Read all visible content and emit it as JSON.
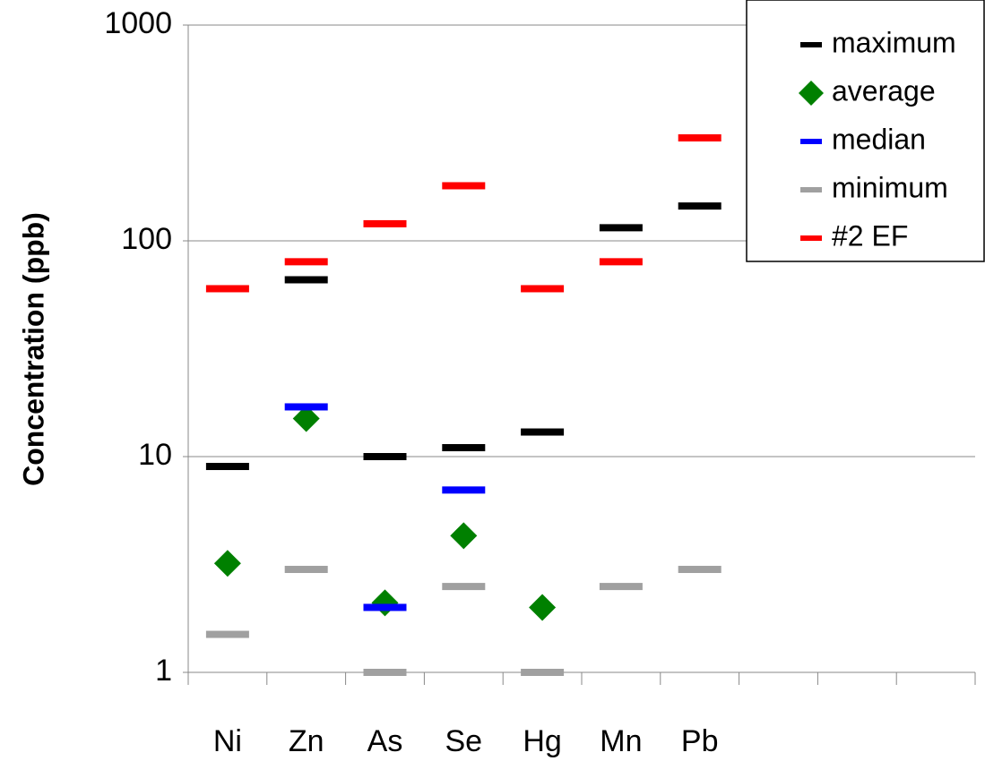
{
  "chart_data": {
    "type": "dot",
    "ylabel": "Concentration (ppb)",
    "categories": [
      "Ni",
      "Zn",
      "As",
      "Se",
      "Hg",
      "Mn",
      "Pb",
      null,
      null,
      null
    ],
    "series": [
      {
        "name": "maximum",
        "color": "#000000",
        "marker": "dash",
        "values": [
          9,
          66,
          10,
          11,
          13,
          115,
          145,
          null,
          null,
          null
        ]
      },
      {
        "name": "average",
        "color": "#008000",
        "marker": "diamond",
        "values": [
          3.2,
          15,
          2.1,
          4.3,
          2.0,
          null,
          null,
          null,
          null,
          null
        ]
      },
      {
        "name": "median",
        "color": "#0000ff",
        "marker": "dash",
        "values": [
          null,
          17,
          2.0,
          7.0,
          null,
          null,
          null,
          null,
          null,
          null
        ]
      },
      {
        "name": "minimum",
        "color": "#a0a0a0",
        "marker": "dash",
        "values": [
          1.5,
          3.0,
          1.0,
          2.5,
          1.0,
          2.5,
          3.0,
          null,
          null,
          null
        ]
      },
      {
        "name": "#2 EF",
        "color": "#ff0000",
        "marker": "dash",
        "values": [
          60,
          80,
          120,
          180,
          60,
          80,
          300,
          null,
          null,
          null
        ]
      }
    ],
    "ylim": [
      1,
      1000
    ],
    "yticks": [
      1,
      10,
      100,
      1000
    ],
    "ylog": true,
    "grid": true,
    "legend": "upper right"
  }
}
